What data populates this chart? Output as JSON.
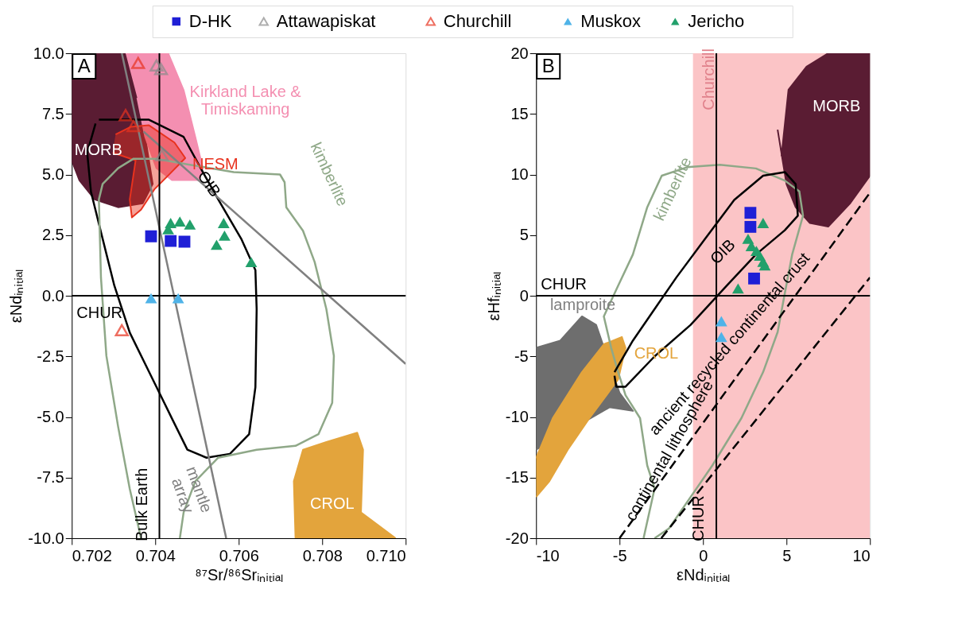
{
  "chart_data": [
    {
      "type": "scatter",
      "legend": "top",
      "xlabel": "⁸⁷Sr/⁸⁶Srᵢₙᵢₜᵢₐₗ",
      "ylabel": "εNdᵢₙᵢₜᵢₐₗ",
      "xlim": [
        0.702,
        0.71
      ],
      "xticks": [
        {
          "value": 0.702,
          "label": "0.702"
        },
        {
          "value": 0.704,
          "label": "0.704"
        },
        {
          "value": 0.706,
          "label": "0.706"
        },
        {
          "value": 0.708,
          "label": "0.708"
        },
        {
          "value": 0.71,
          "label": "0.710"
        }
      ],
      "ylim": [
        -10,
        10
      ],
      "yticks": [
        {
          "value": -10,
          "label": "-10.0"
        },
        {
          "value": -7.5,
          "label": "-7.5"
        },
        {
          "value": -5,
          "label": "-5.0"
        },
        {
          "value": -2.5,
          "label": "-2.5"
        },
        {
          "value": 0,
          "label": "0.0"
        },
        {
          "value": 2.5,
          "label": "2.5"
        },
        {
          "value": 5,
          "label": "5.0"
        },
        {
          "value": 7.5,
          "label": "7.5"
        },
        {
          "value": 10,
          "label": "10.0"
        }
      ],
      "grid": false,
      "ref_lines": [
        {
          "axis": "y",
          "value": 0,
          "label": "CHUR",
          "color": "#000000"
        },
        {
          "axis": "x",
          "value": 0.7041,
          "label": "Bulk Earth",
          "color": "#000000"
        }
      ],
      "annotations": [
        "A",
        "MORB",
        "Kirkland Lake &\nTimiskaming",
        "NESM",
        "OIB",
        "kimberlite",
        "mantle\narray",
        "CROL"
      ],
      "series": [
        {
          "type": "area",
          "color": "#5a1c33",
          "x": [
            0.702,
            0.70329,
            0.70357,
            0.70376,
            0.70394,
            0.7037,
            0.70311,
            0.70255,
            0.70218,
            0.702
          ],
          "values": [
            10,
            10,
            8.16,
            6.55,
            4.61,
            3.81,
            3.65,
            3.97,
            4.77,
            5.58
          ]
        },
        {
          "type": "area",
          "color": "#f48fb1",
          "x": [
            0.70329,
            0.70431,
            0.70468,
            0.70496,
            0.70514,
            0.70505,
            0.7044,
            0.70403,
            0.70376,
            0.70357
          ],
          "values": [
            10,
            10,
            8.48,
            6.55,
            5.26,
            4.77,
            4.77,
            5.26,
            6.55,
            8.16
          ]
        },
        {
          "type": "area",
          "color": "#e8321e",
          "x": [
            0.70305,
            0.70342,
            0.70385,
            0.70446,
            0.70472,
            0.70435,
            0.70398,
            0.70366,
            0.70344,
            0.70339,
            0.70353,
            0.70298
          ],
          "values": [
            6.65,
            6.97,
            7.03,
            6.32,
            5.68,
            5.03,
            4.39,
            3.55,
            3.23,
            3.97,
            5.58,
            5.9
          ]
        },
        {
          "type": "area",
          "color": "#e3a43c",
          "x": [
            0.70736,
            0.70732,
            0.70754,
            0.7081,
            0.70884,
            0.70898,
            0.70893,
            0.70976
          ],
          "values": [
            -10,
            -7.65,
            -6.35,
            -6.03,
            -5.65,
            -6.35,
            -8.94,
            -10
          ]
        },
        {
          "type": "line",
          "color": "#000000",
          "x": [
            0.70265,
            0.70385,
            0.70468,
            0.70514,
            0.70551,
            0.70606,
            0.7064,
            0.70643,
            0.7064,
            0.70625,
            0.70579,
            0.70523,
            0.70477,
            0.7044,
            0.70385,
            0.70339,
            0.70302,
            0.70274,
            0.70246,
            0.70237,
            0.70257
          ],
          "values": [
            7.26,
            7.26,
            6.55,
            5.1,
            3.97,
            2.35,
            1.06,
            -0.55,
            -3.77,
            -5.71,
            -6.52,
            -6.68,
            -6.35,
            -5.06,
            -3.13,
            -1.52,
            0.42,
            2.35,
            4.29,
            5.9,
            7.1
          ]
        },
        {
          "type": "line",
          "color": "#8fa888",
          "x": [
            0.70366,
            0.70339,
            0.70311,
            0.70283,
            0.7027,
            0.70265,
            0.70274,
            0.70311,
            0.70348,
            0.70403,
            0.70477,
            0.70588,
            0.70699,
            0.7071,
            0.70714,
            0.70754,
            0.70782,
            0.7081,
            0.70828,
            0.70824,
            0.70791,
            0.70736,
            0.70643,
            0.70551,
            0.70496,
            0.70468,
            0.70459
          ],
          "values": [
            -10,
            -7.97,
            -5.39,
            -2.48,
            0.74,
            3.97,
            4.61,
            5.26,
            5.65,
            5.65,
            5.42,
            5.1,
            5.0,
            4.68,
            3.65,
            2.68,
            1.39,
            -0.55,
            -2.48,
            -4.42,
            -5.71,
            -6.19,
            -6.35,
            -6.68,
            -7.65,
            -8.94,
            -10
          ]
        },
        {
          "type": "line",
          "color": "#808080",
          "x": [
            0.7032,
            0.7057
          ],
          "values": [
            10,
            -10
          ]
        },
        {
          "type": "line",
          "color": "#808080",
          "x": [
            0.70372,
            0.71
          ],
          "values": [
            6.77,
            -2.81
          ]
        },
        {
          "name": "D-HK",
          "marker": "square",
          "color": "#1f1fd6",
          "x": [
            0.7039,
            0.70437,
            0.7047
          ],
          "values": [
            2.45,
            2.26,
            2.23
          ]
        },
        {
          "name": "Attawapiskat",
          "marker": "triangle",
          "color": "#8c8c8c",
          "x": [
            0.70403,
            0.70414,
            0.70416
          ],
          "values": [
            9.5,
            9.35,
            5.8
          ]
        },
        {
          "name": "Churchill",
          "marker": "triangle",
          "color": "#e8321e",
          "x": [
            0.70359,
            0.70329,
            0.70348,
            0.7032
          ],
          "values": [
            9.6,
            7.45,
            7.0,
            -1.42
          ]
        },
        {
          "name": "Muskox",
          "marker": "triangle",
          "color": "#4fb3e8",
          "x": [
            0.7039,
            0.70455
          ],
          "values": [
            -0.1,
            -0.1
          ]
        },
        {
          "name": "Jericho",
          "marker": "triangle",
          "color": "#22a06b",
          "x": [
            0.70437,
            0.70459,
            0.70483,
            0.70431,
            0.70564,
            0.70566,
            0.70547,
            0.7063
          ],
          "values": [
            3.0,
            3.06,
            2.94,
            2.74,
            3.0,
            2.48,
            2.1,
            1.39
          ]
        }
      ]
    },
    {
      "type": "scatter",
      "legend": "top",
      "xlabel": "εNdᵢₙᵢₜᵢₐₗ",
      "ylabel": "εHfᵢₙᵢₜᵢₐₗ",
      "xlim": [
        -10,
        10
      ],
      "xticks": [
        -10,
        -5,
        0,
        5,
        10
      ],
      "ylim": [
        -20,
        20
      ],
      "yticks": [
        -20,
        -15,
        -10,
        -5,
        0,
        5,
        10,
        15,
        20
      ],
      "grid": false,
      "bands": [
        {
          "axis": "x",
          "from": -0.6,
          "to": 10,
          "label": "Churchill",
          "color": "#fbc4c6"
        }
      ],
      "ref_lines": [
        {
          "axis": "y",
          "value": 0,
          "label": "CHUR",
          "color": "#000000"
        },
        {
          "axis": "x",
          "value": 0.8,
          "label": "CHUR",
          "color": "#000000"
        }
      ],
      "annotations": [
        "B",
        "MORB",
        "kimberlite",
        "OIB",
        "lamproite",
        "CROL",
        "continental lithosphere",
        "ancient recycled continental crust"
      ],
      "series": [
        {
          "type": "area",
          "color": "#5a1c33",
          "x": [
            4.7,
            5.12,
            6.2,
            7.5,
            10,
            10,
            8.8,
            7.5,
            6.4,
            5.55,
            5.0,
            4.47
          ],
          "values": [
            11.5,
            17.0,
            18.9,
            20,
            20,
            9.9,
            7.6,
            5.7,
            6.0,
            7.3,
            9.2,
            13.7
          ]
        },
        {
          "type": "area",
          "color": "#6e6e6e",
          "x": [
            -10,
            -8.55,
            -7.25,
            -6.4,
            -5.0,
            -4.2,
            -5.6,
            -10
          ],
          "values": [
            -4.3,
            -3.7,
            -1.7,
            -2.4,
            -8.0,
            -9.5,
            -9.2,
            -12.7
          ]
        },
        {
          "type": "area",
          "color": "#e3a43c",
          "x": [
            -10,
            -9.0,
            -7.25,
            -5.94,
            -4.86,
            -4.64,
            -5.08,
            -6.8,
            -8.1,
            -9.2,
            -10
          ],
          "values": [
            -13.4,
            -10.1,
            -6.3,
            -4.0,
            -3.4,
            -4.3,
            -6.9,
            -10.1,
            -12.7,
            -15.3,
            -16.6
          ]
        },
        {
          "type": "line",
          "color": "#8fa888",
          "x": [
            -3.56,
            -2.9,
            -3.34,
            -3.77,
            -4.64,
            -5.08,
            -5.5,
            -5.94,
            -5.08,
            -4.2,
            -3.34,
            -2.47,
            -0.95,
            1.0,
            3.17,
            4.9,
            5.77,
            5.99,
            5.34,
            4.9,
            4.47,
            3.6,
            2.3,
            0.56,
            -0.74,
            -2.04,
            -2.9
          ],
          "values": [
            -20,
            -15.9,
            -14.0,
            -10.1,
            -8.2,
            -6.3,
            -4.3,
            -1.7,
            0.84,
            3.4,
            7.3,
            9.9,
            10.6,
            10.8,
            10.5,
            9.5,
            8.6,
            6.6,
            3.4,
            0.2,
            -3.0,
            -6.3,
            -10.1,
            -14.0,
            -16.6,
            -19.2,
            -20
          ]
        },
        {
          "type": "line",
          "color": "#000000",
          "x": [
            -5.3,
            -4.2,
            -2.9,
            -1.6,
            0.13,
            1.87,
            3.6,
            4.9,
            5.55,
            5.68,
            4.9,
            3.17,
            1.43,
            -0.74,
            -2.9,
            -4.64,
            -5.2,
            -5.3
          ],
          "values": [
            -6.3,
            -3.7,
            -1.1,
            1.5,
            4.7,
            7.9,
            9.9,
            10.2,
            9.2,
            6.6,
            5.4,
            3.4,
            0.84,
            -2.4,
            -5.0,
            -7.5,
            -7.5,
            -6.6
          ]
        },
        {
          "type": "line",
          "line_style": "dashed",
          "color": "#000000",
          "x": [
            -5.0,
            10
          ],
          "values": [
            -20,
            8.5
          ]
        },
        {
          "type": "line",
          "line_style": "dashed",
          "color": "#000000",
          "x": [
            -2.5,
            10
          ],
          "values": [
            -20,
            1.5
          ]
        },
        {
          "name": "D-HK",
          "marker": "square",
          "color": "#1f1fd6",
          "x": [
            2.84,
            2.84,
            3.06
          ],
          "values": [
            6.84,
            5.68,
            1.42
          ]
        },
        {
          "name": "Muskox",
          "marker": "triangle",
          "color": "#4fb3e8",
          "x": [
            1.1,
            1.1
          ],
          "values": [
            -2.1,
            -3.4
          ]
        },
        {
          "name": "Jericho",
          "marker": "triangle",
          "color": "#22a06b",
          "x": [
            3.6,
            2.7,
            3.2,
            3.4,
            3.6,
            3.7,
            2.9,
            2.1
          ],
          "values": [
            6.0,
            4.7,
            3.7,
            3.3,
            2.8,
            2.5,
            4.1,
            0.6
          ]
        }
      ]
    }
  ]
}
